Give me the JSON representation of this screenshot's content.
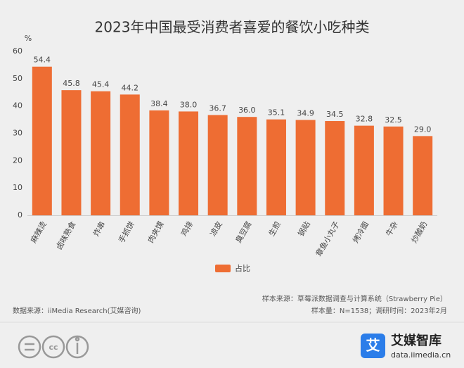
{
  "chart_data": {
    "type": "bar",
    "title": "2023年中国最受消费者喜爱的餐饮小吃种类",
    "y_unit": "%",
    "categories": [
      "麻辣烫",
      "卤味熟食",
      "炸串",
      "手抓饼",
      "肉夹馍",
      "鸡排",
      "凉皮",
      "臭豆腐",
      "生煎",
      "锅贴",
      "章鱼小丸子",
      "烤冷面",
      "牛杂",
      "炒酸奶"
    ],
    "series": [
      {
        "name": "占比",
        "color": "#ee6d33",
        "values": [
          54.4,
          45.8,
          45.4,
          44.2,
          38.4,
          38.0,
          36.7,
          36.0,
          35.1,
          34.9,
          34.5,
          32.8,
          32.5,
          29.0
        ],
        "value_labels": [
          "54.4",
          "45.8",
          "45.4",
          "44.2",
          "38.4",
          "38.0",
          "36.7",
          "36.0",
          "35.1",
          "34.9",
          "34.5",
          "32.8",
          "32.5",
          "29.0"
        ]
      }
    ],
    "ylim": [
      0,
      60
    ],
    "yticks": [
      0,
      10,
      20,
      30,
      40,
      50,
      60
    ],
    "grid": false,
    "legend": "bottom"
  },
  "footer": {
    "sample_source": "样本来源：草莓派数据调查与计算系统（Strawberry Pie）",
    "sample_size": "样本量：N=1538；调研时间：2023年2月",
    "data_source": "数据来源：iiMedia Research(艾媒咨询)",
    "brand": "艾媒智库",
    "url": "data.iimedia.cn"
  }
}
